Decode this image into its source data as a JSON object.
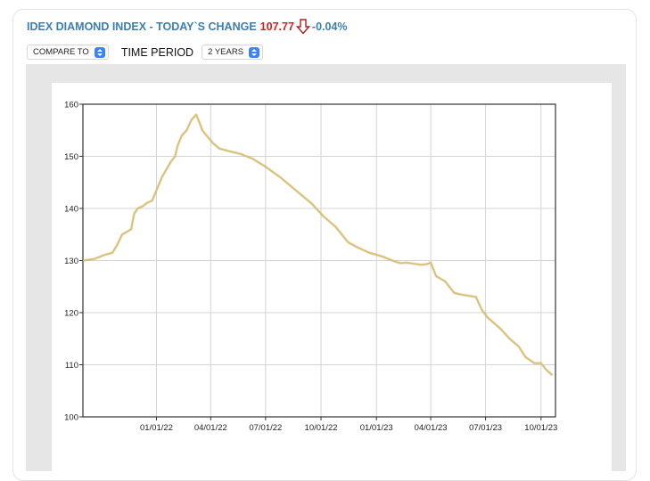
{
  "header": {
    "title": "IDEX DIAMOND INDEX - TODAY`S CHANGE",
    "value": "107.77",
    "change": "-0.04%",
    "arrow_icon": "down-arrow-icon",
    "title_color": "#3a7fb3",
    "value_color": "#cc2222"
  },
  "controls": {
    "compare_label": "COMPARE TO",
    "period_label": "TIME PERIOD",
    "period_value": "2 YEARS"
  },
  "chart_data": {
    "type": "line",
    "title": "",
    "xlabel": "",
    "ylabel": "",
    "ylim": [
      100,
      160
    ],
    "yticks": [
      100,
      110,
      120,
      130,
      140,
      150,
      160
    ],
    "xlim": [
      "2021-09-01",
      "2023-10-25"
    ],
    "xticks": [
      "2022-01-01",
      "2022-04-01",
      "2022-07-01",
      "2022-10-01",
      "2023-01-01",
      "2023-04-01",
      "2023-07-01",
      "2023-10-01"
    ],
    "xtick_labels": [
      "01/01/22",
      "04/01/22",
      "07/01/22",
      "10/01/22",
      "01/01/23",
      "04/01/23",
      "07/01/23",
      "10/01/23"
    ],
    "grid": true,
    "line_color": "#d9c070",
    "series": [
      {
        "x": [
          "2021-09-01",
          "2021-09-20",
          "2021-10-05",
          "2021-10-20",
          "2021-10-28",
          "2021-11-05",
          "2021-11-20",
          "2021-11-25",
          "2021-12-01",
          "2021-12-10",
          "2021-12-15",
          "2021-12-25",
          "2022-01-10",
          "2022-01-25",
          "2022-02-01",
          "2022-02-05",
          "2022-02-12",
          "2022-02-20",
          "2022-02-28",
          "2022-03-08",
          "2022-03-15",
          "2022-03-18",
          "2022-03-25",
          "2022-04-05",
          "2022-04-15",
          "2022-05-01",
          "2022-05-20",
          "2022-06-10",
          "2022-07-01",
          "2022-07-25",
          "2022-08-20",
          "2022-09-15",
          "2022-10-05",
          "2022-10-25",
          "2022-11-15",
          "2022-12-01",
          "2022-12-20",
          "2023-01-10",
          "2023-02-01",
          "2023-02-10",
          "2023-02-20",
          "2023-03-15",
          "2023-03-25",
          "2023-04-01",
          "2023-04-10",
          "2023-04-25",
          "2023-05-10",
          "2023-05-20",
          "2023-06-15",
          "2023-06-25",
          "2023-07-05",
          "2023-07-25",
          "2023-08-10",
          "2023-08-25",
          "2023-09-05",
          "2023-09-20",
          "2023-10-01",
          "2023-10-10",
          "2023-10-20"
        ],
        "y": [
          130,
          130.3,
          131,
          131.5,
          133,
          135,
          136,
          139,
          140,
          140.5,
          141,
          141.5,
          146,
          149,
          150,
          152,
          154,
          155,
          157,
          158,
          156,
          155,
          154,
          152.5,
          151.5,
          151,
          150.5,
          149.5,
          148,
          146,
          143.5,
          141,
          138.5,
          136.5,
          133.5,
          132.5,
          131.5,
          130.8,
          129.8,
          129.5,
          129.6,
          129.2,
          129.3,
          129.6,
          127,
          126,
          123.8,
          123.5,
          123,
          120.5,
          119,
          117,
          115,
          113.5,
          111.5,
          110.3,
          110.3,
          109,
          108
        ]
      }
    ]
  }
}
